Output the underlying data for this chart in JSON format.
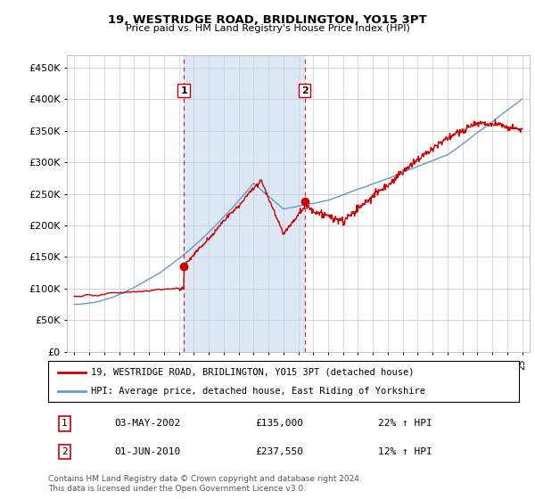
{
  "title": "19, WESTRIDGE ROAD, BRIDLINGTON, YO15 3PT",
  "subtitle": "Price paid vs. HM Land Registry's House Price Index (HPI)",
  "ytick_values": [
    0,
    50000,
    100000,
    150000,
    200000,
    250000,
    300000,
    350000,
    400000,
    450000
  ],
  "ylim": [
    0,
    470000
  ],
  "xlim_start": 1994.5,
  "xlim_end": 2025.5,
  "hpi_color": "#6699cc",
  "price_color": "#cc0000",
  "bg_color": "#e8f0f8",
  "shade_color": "#dce8f4",
  "sale1_x": 2002.33,
  "sale1_y": 135000,
  "sale1_label": "1",
  "sale2_x": 2010.42,
  "sale2_y": 237550,
  "sale2_label": "2",
  "vline1_x": 2002.33,
  "vline2_x": 2010.42,
  "legend_line1": "19, WESTRIDGE ROAD, BRIDLINGTON, YO15 3PT (detached house)",
  "legend_line2": "HPI: Average price, detached house, East Riding of Yorkshire",
  "table_row1": [
    "1",
    "03-MAY-2002",
    "£135,000",
    "22% ↑ HPI"
  ],
  "table_row2": [
    "2",
    "01-JUN-2010",
    "£237,550",
    "12% ↑ HPI"
  ],
  "footnote": "Contains HM Land Registry data © Crown copyright and database right 2024.\nThis data is licensed under the Open Government Licence v3.0.",
  "xtick_years": [
    1995,
    1996,
    1997,
    1998,
    1999,
    2000,
    2001,
    2002,
    2003,
    2004,
    2005,
    2006,
    2007,
    2008,
    2009,
    2010,
    2011,
    2012,
    2013,
    2014,
    2015,
    2016,
    2017,
    2018,
    2019,
    2020,
    2021,
    2022,
    2023,
    2024,
    2025
  ]
}
